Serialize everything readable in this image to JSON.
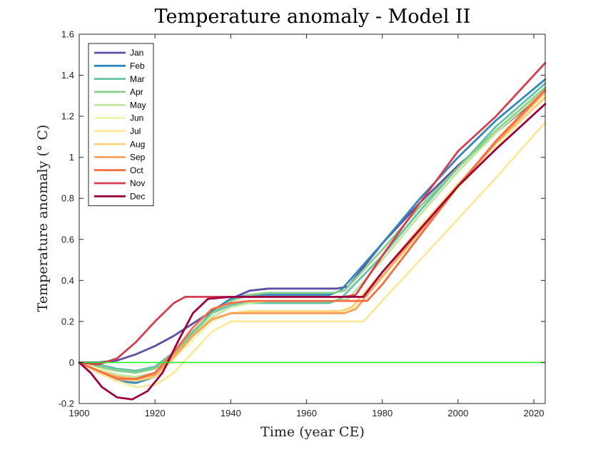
{
  "chart_data": {
    "type": "line",
    "title": "Temperature anomaly - Model II",
    "xlabel": "Time (year CE)",
    "ylabel": "Temperature anomaly (° C)",
    "xlim": [
      1900,
      2023
    ],
    "ylim": [
      -0.2,
      1.6
    ],
    "x_ticks": [
      1900,
      1920,
      1940,
      1960,
      1980,
      2000,
      2020
    ],
    "x_tick_labels": [
      "1900",
      "1920",
      "1940",
      "1960",
      "1980",
      "2000",
      "2020"
    ],
    "y_ticks": [
      -0.2,
      0,
      0.2,
      0.4,
      0.6,
      0.8,
      1,
      1.2,
      1.4,
      1.6
    ],
    "y_tick_labels": [
      "-0.2",
      "0",
      "0.2",
      "0.4",
      "0.6",
      "0.8",
      "1",
      "1.2",
      "1.4",
      "1.6"
    ],
    "grid": false,
    "legend_location": "top-left",
    "reference_line": {
      "y": 0,
      "color": "#22ee22"
    },
    "series": [
      {
        "name": "Jan",
        "color": "#5e4fa2",
        "x": [
          1900,
          1905,
          1910,
          1915,
          1920,
          1925,
          1930,
          1935,
          1940,
          1945,
          1950,
          1960,
          1968,
          1971,
          1980,
          1990,
          2000,
          2010,
          2023
        ],
        "y": [
          0,
          0.0,
          0.01,
          0.04,
          0.08,
          0.13,
          0.19,
          0.25,
          0.31,
          0.35,
          0.36,
          0.36,
          0.36,
          0.37,
          0.58,
          0.78,
          0.96,
          1.12,
          1.32
        ]
      },
      {
        "name": "Feb",
        "color": "#3288bd",
        "x": [
          1900,
          1905,
          1910,
          1915,
          1920,
          1925,
          1930,
          1935,
          1940,
          1945,
          1950,
          1960,
          1966,
          1969,
          1980,
          1990,
          2000,
          2010,
          2023
        ],
        "y": [
          0,
          -0.05,
          -0.09,
          -0.1,
          -0.07,
          0.02,
          0.14,
          0.25,
          0.31,
          0.33,
          0.33,
          0.33,
          0.33,
          0.35,
          0.58,
          0.8,
          1.0,
          1.18,
          1.38
        ]
      },
      {
        "name": "Mar",
        "color": "#66c2a5",
        "x": [
          1900,
          1905,
          1910,
          1915,
          1920,
          1925,
          1930,
          1935,
          1940,
          1945,
          1950,
          1960,
          1966,
          1969,
          1980,
          1990,
          2000,
          2010,
          2023
        ],
        "y": [
          0,
          -0.01,
          -0.03,
          -0.04,
          -0.02,
          0.05,
          0.15,
          0.24,
          0.28,
          0.29,
          0.29,
          0.29,
          0.29,
          0.31,
          0.52,
          0.74,
          0.95,
          1.15,
          1.36
        ]
      },
      {
        "name": "Apr",
        "color": "#88d088",
        "x": [
          1900,
          1905,
          1910,
          1915,
          1920,
          1925,
          1930,
          1935,
          1940,
          1945,
          1950,
          1960,
          1967,
          1970,
          1980,
          1990,
          2000,
          2010,
          2023
        ],
        "y": [
          0,
          -0.02,
          -0.04,
          -0.05,
          -0.03,
          0.04,
          0.14,
          0.24,
          0.3,
          0.33,
          0.34,
          0.34,
          0.34,
          0.35,
          0.55,
          0.76,
          0.95,
          1.13,
          1.34
        ]
      },
      {
        "name": "May",
        "color": "#c2e69e",
        "x": [
          1900,
          1905,
          1910,
          1915,
          1920,
          1925,
          1930,
          1935,
          1940,
          1945,
          1950,
          1960,
          1968,
          1971,
          1980,
          1990,
          2000,
          2010,
          2023
        ],
        "y": [
          0,
          -0.03,
          -0.06,
          -0.07,
          -0.05,
          0.03,
          0.13,
          0.22,
          0.27,
          0.29,
          0.3,
          0.3,
          0.3,
          0.31,
          0.5,
          0.72,
          0.93,
          1.12,
          1.33
        ]
      },
      {
        "name": "Jun",
        "color": "#f0f5a8",
        "x": [
          1900,
          1905,
          1910,
          1915,
          1920,
          1925,
          1930,
          1935,
          1940,
          1945,
          1950,
          1960,
          1970,
          1973,
          1980,
          1990,
          2000,
          2010,
          2023
        ],
        "y": [
          0,
          -0.03,
          -0.07,
          -0.08,
          -0.06,
          0.02,
          0.11,
          0.2,
          0.24,
          0.25,
          0.25,
          0.25,
          0.25,
          0.27,
          0.41,
          0.63,
          0.85,
          1.05,
          1.3
        ]
      },
      {
        "name": "Jul",
        "color": "#fbe89a",
        "x": [
          1900,
          1905,
          1910,
          1915,
          1920,
          1925,
          1930,
          1935,
          1940,
          1945,
          1950,
          1960,
          1970,
          1975,
          1980,
          1990,
          2000,
          2010,
          2023
        ],
        "y": [
          0,
          -0.05,
          -0.09,
          -0.12,
          -0.11,
          -0.05,
          0.05,
          0.15,
          0.2,
          0.2,
          0.2,
          0.2,
          0.2,
          0.2,
          0.3,
          0.5,
          0.7,
          0.9,
          1.17
        ]
      },
      {
        "name": "Aug",
        "color": "#fdd07a",
        "x": [
          1900,
          1905,
          1910,
          1915,
          1920,
          1925,
          1930,
          1935,
          1940,
          1945,
          1950,
          1960,
          1969,
          1972,
          1980,
          1990,
          2000,
          2010,
          2023
        ],
        "y": [
          0,
          -0.04,
          -0.08,
          -0.09,
          -0.07,
          0.02,
          0.13,
          0.21,
          0.24,
          0.25,
          0.25,
          0.25,
          0.25,
          0.27,
          0.44,
          0.66,
          0.87,
          1.07,
          1.29
        ]
      },
      {
        "name": "Sep",
        "color": "#fca25e",
        "x": [
          1900,
          1905,
          1910,
          1915,
          1920,
          1925,
          1930,
          1935,
          1940,
          1945,
          1950,
          1960,
          1970,
          1973,
          1980,
          1990,
          2000,
          2010,
          2023
        ],
        "y": [
          0,
          -0.04,
          -0.07,
          -0.08,
          -0.06,
          0.03,
          0.13,
          0.21,
          0.24,
          0.24,
          0.24,
          0.24,
          0.24,
          0.26,
          0.42,
          0.64,
          0.86,
          1.07,
          1.32
        ]
      },
      {
        "name": "Oct",
        "color": "#f46d43",
        "x": [
          1900,
          1905,
          1910,
          1915,
          1920,
          1925,
          1930,
          1935,
          1940,
          1945,
          1950,
          1960,
          1970,
          1976,
          1980,
          1990,
          2000,
          2010,
          2023
        ],
        "y": [
          0,
          -0.04,
          -0.08,
          -0.08,
          -0.05,
          0.05,
          0.17,
          0.26,
          0.29,
          0.3,
          0.3,
          0.3,
          0.3,
          0.3,
          0.38,
          0.62,
          0.86,
          1.08,
          1.33
        ]
      },
      {
        "name": "Nov",
        "color": "#d53e4f",
        "x": [
          1900,
          1905,
          1910,
          1915,
          1920,
          1925,
          1928,
          1935,
          1940,
          1945,
          1950,
          1960,
          1970,
          1973,
          1980,
          1990,
          2000,
          2010,
          2023
        ],
        "y": [
          0,
          -0.01,
          0.02,
          0.1,
          0.2,
          0.29,
          0.32,
          0.32,
          0.32,
          0.32,
          0.32,
          0.32,
          0.32,
          0.33,
          0.52,
          0.78,
          1.03,
          1.2,
          1.46
        ]
      },
      {
        "name": "Dec",
        "color": "#9e0142",
        "x": [
          1900,
          1903,
          1906,
          1910,
          1914,
          1918,
          1922,
          1926,
          1930,
          1934,
          1940,
          1950,
          1960,
          1970,
          1975,
          1980,
          1990,
          2000,
          2010,
          2023
        ],
        "y": [
          0,
          -0.05,
          -0.12,
          -0.17,
          -0.18,
          -0.14,
          -0.05,
          0.1,
          0.24,
          0.31,
          0.32,
          0.32,
          0.32,
          0.32,
          0.32,
          0.44,
          0.65,
          0.86,
          1.04,
          1.26
        ]
      }
    ]
  }
}
